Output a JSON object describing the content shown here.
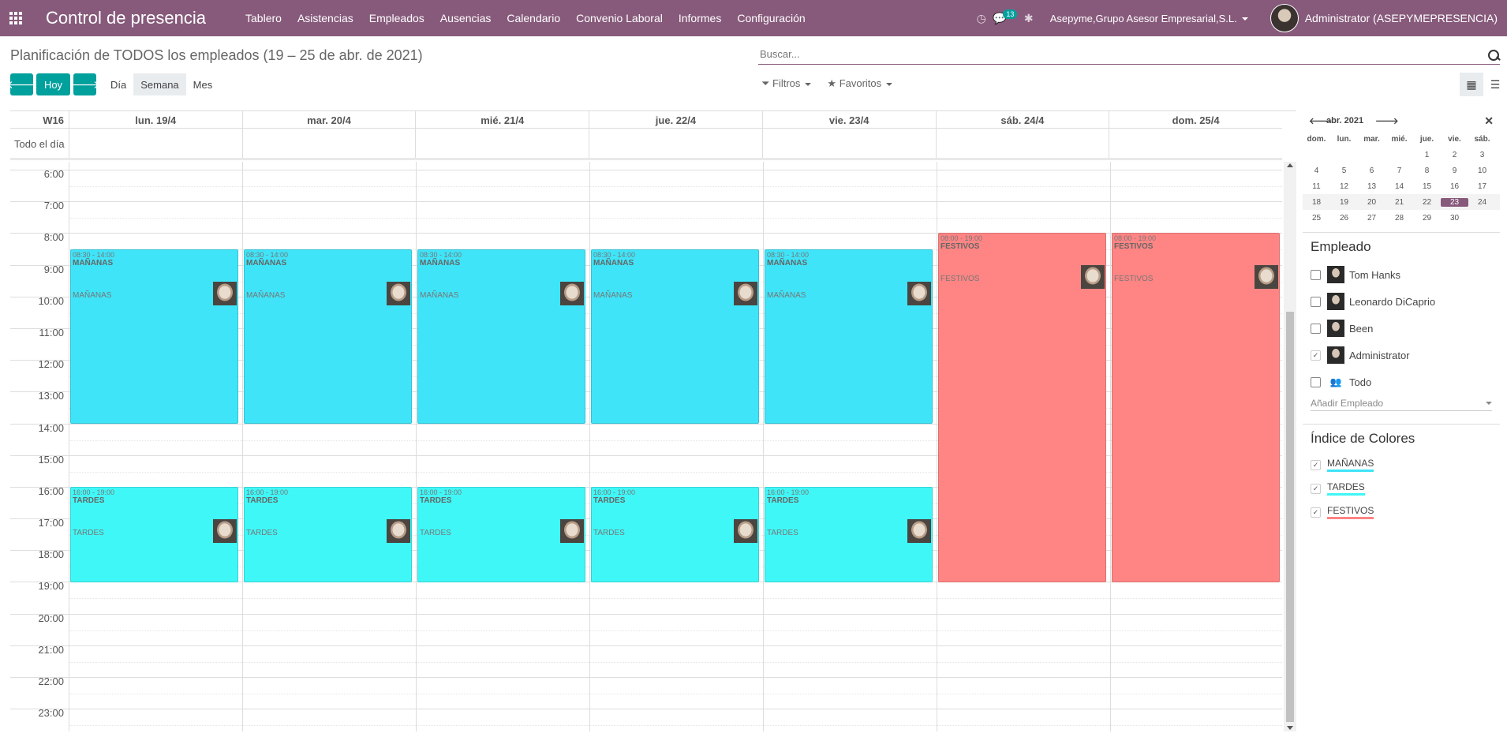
{
  "topbar": {
    "app_title": "Control de presencia",
    "menu": [
      "Tablero",
      "Asistencias",
      "Empleados",
      "Ausencias",
      "Calendario",
      "Convenio Laboral",
      "Informes",
      "Configuración"
    ],
    "messages_badge": "13",
    "company": "Asepyme,Grupo Asesor Empresarial,S.L.",
    "user": "Administrator (ASEPYMEPRESENCIA)"
  },
  "page": {
    "title": "Planificación de TODOS los empleados (19 – 25 de abr. de 2021)",
    "search_placeholder": "Buscar...",
    "buttons": {
      "today": "Hoy"
    },
    "scales": [
      "Día",
      "Semana",
      "Mes"
    ],
    "active_scale": "Semana",
    "filters": "Filtros",
    "favorites": "Favoritos"
  },
  "calendar": {
    "week": "W16",
    "allday_label": "Todo el día",
    "days": [
      "lun. 19/4",
      "mar. 20/4",
      "mié. 21/4",
      "jue. 22/4",
      "vie. 23/4",
      "sáb. 24/4",
      "dom. 25/4"
    ],
    "hours": [
      "6:00",
      "7:00",
      "8:00",
      "9:00",
      "10:00",
      "11:00",
      "12:00",
      "13:00",
      "14:00",
      "15:00",
      "16:00",
      "17:00",
      "18:00",
      "19:00",
      "20:00",
      "21:00",
      "22:00",
      "23:00"
    ],
    "events": [
      {
        "day": 0,
        "start": 8.5,
        "end": 14,
        "time": "08:30 - 14:00",
        "name": "MAÑANAS",
        "sub": "MAÑANAS",
        "kind": "man"
      },
      {
        "day": 1,
        "start": 8.5,
        "end": 14,
        "time": "08:30 - 14:00",
        "name": "MAÑANAS",
        "sub": "MAÑANAS",
        "kind": "man"
      },
      {
        "day": 2,
        "start": 8.5,
        "end": 14,
        "time": "08:30 - 14:00",
        "name": "MAÑANAS",
        "sub": "MAÑANAS",
        "kind": "man"
      },
      {
        "day": 3,
        "start": 8.5,
        "end": 14,
        "time": "08:30 - 14:00",
        "name": "MAÑANAS",
        "sub": "MAÑANAS",
        "kind": "man"
      },
      {
        "day": 4,
        "start": 8.5,
        "end": 14,
        "time": "08:30 - 14:00",
        "name": "MAÑANAS",
        "sub": "MAÑANAS",
        "kind": "man"
      },
      {
        "day": 0,
        "start": 16,
        "end": 19,
        "time": "16:00 - 19:00",
        "name": "TARDES",
        "sub": "TARDES",
        "kind": "tar"
      },
      {
        "day": 1,
        "start": 16,
        "end": 19,
        "time": "16:00 - 19:00",
        "name": "TARDES",
        "sub": "TARDES",
        "kind": "tar"
      },
      {
        "day": 2,
        "start": 16,
        "end": 19,
        "time": "16:00 - 19:00",
        "name": "TARDES",
        "sub": "TARDES",
        "kind": "tar"
      },
      {
        "day": 3,
        "start": 16,
        "end": 19,
        "time": "16:00 - 19:00",
        "name": "TARDES",
        "sub": "TARDES",
        "kind": "tar"
      },
      {
        "day": 4,
        "start": 16,
        "end": 19,
        "time": "16:00 - 19:00",
        "name": "TARDES",
        "sub": "TARDES",
        "kind": "tar"
      },
      {
        "day": 5,
        "start": 8,
        "end": 19,
        "time": "08:00 - 19:00",
        "name": "FESTIVOS",
        "sub": "FESTIVOS",
        "kind": "fes"
      },
      {
        "day": 6,
        "start": 8,
        "end": 19,
        "time": "08:00 - 19:00",
        "name": "FESTIVOS",
        "sub": "FESTIVOS",
        "kind": "fes"
      }
    ],
    "colors": {
      "man": "#3fe4f8",
      "tar": "#40f7f7",
      "fes": "#fe8584"
    }
  },
  "minical": {
    "month": "abr. 2021",
    "weekdays": [
      "dom.",
      "lun.",
      "mar.",
      "mié.",
      "jue.",
      "vie.",
      "sáb."
    ],
    "weeks": [
      [
        "",
        "",
        "",
        "",
        "1",
        "2",
        "3"
      ],
      [
        "4",
        "5",
        "6",
        "7",
        "8",
        "9",
        "10"
      ],
      [
        "11",
        "12",
        "13",
        "14",
        "15",
        "16",
        "17"
      ],
      [
        "18",
        "19",
        "20",
        "21",
        "22",
        "23",
        "24"
      ],
      [
        "25",
        "26",
        "27",
        "28",
        "29",
        "30",
        ""
      ]
    ],
    "selected": "23"
  },
  "sidebar": {
    "employees_title": "Empleado",
    "employees": [
      {
        "name": "Tom Hanks",
        "checked": false
      },
      {
        "name": "Leonardo DiCaprio",
        "checked": false
      },
      {
        "name": "Been",
        "checked": false
      },
      {
        "name": "Administrator",
        "checked": true
      }
    ],
    "all_label": "Todo",
    "add_employee": "Añadir Empleado",
    "colors_title": "Índice de Colores",
    "color_items": [
      {
        "name": "MAÑANAS",
        "color": "#3fe4f8"
      },
      {
        "name": "TARDES",
        "color": "#40f7f7"
      },
      {
        "name": "FESTIVOS",
        "color": "#fe8584"
      }
    ]
  }
}
